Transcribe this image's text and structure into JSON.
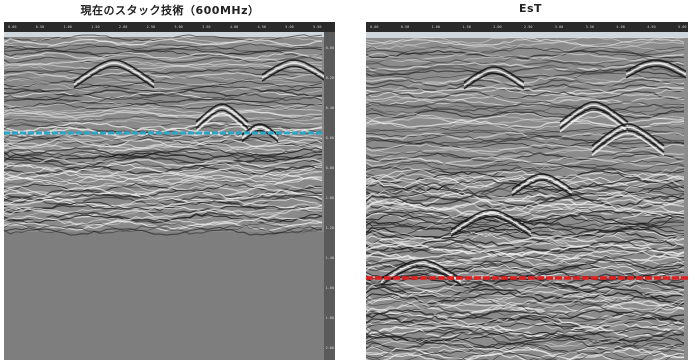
{
  "panels": [
    {
      "title": "現在のスタック技術（600MHz）",
      "ruler_ticks": [
        "0.00",
        "0.50",
        "1.00",
        "1.50",
        "2.00",
        "2.50",
        "3.00",
        "3.50",
        "4.00",
        "4.50",
        "5.00",
        "5.50"
      ],
      "depth_ticks": [
        "0.00",
        "0.20",
        "0.40",
        "0.60",
        "0.80",
        "1.00",
        "1.20",
        "1.40",
        "1.60",
        "1.80",
        "2.00"
      ],
      "colors": {
        "line": "#2aa6c9",
        "background": "#7f7f7f"
      },
      "features": [
        "shallow-hyperbola-reflections",
        "blue-horizontal-marker-line",
        "signal-fade-to-gray"
      ]
    },
    {
      "title": "EsT",
      "ruler_ticks": [
        "0.00",
        "0.50",
        "1.00",
        "1.50",
        "2.00",
        "2.50",
        "3.00",
        "3.50",
        "4.00",
        "4.50",
        "5.00"
      ],
      "depth_ticks": [],
      "colors": {
        "line": "#e02020",
        "background": "#7f7f7f"
      },
      "features": [
        "deep-hyperbola-reflections",
        "red-horizontal-marker-line",
        "noisy-deep-signal"
      ]
    }
  ]
}
